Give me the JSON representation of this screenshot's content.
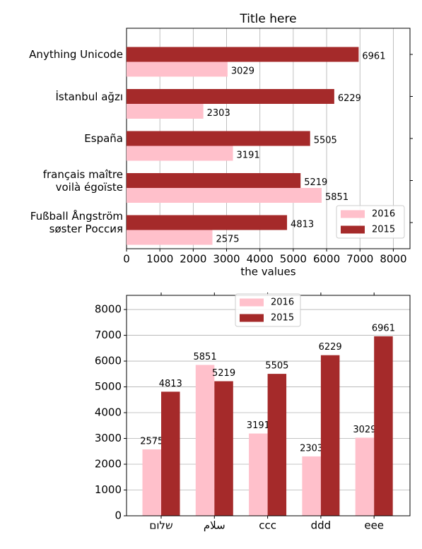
{
  "chart_data": [
    {
      "type": "hbar",
      "title": "Title here",
      "x_label": "the values",
      "categories": [
        "Fußball Ångström\nsøster Россия",
        "français maître\nvoilà égoïste",
        "España",
        "İstanbul ağzı",
        "Anything Unicode"
      ],
      "series": [
        {
          "name": "2016",
          "color": "#ffc0cb",
          "values": [
            2575,
            5851,
            3191,
            2303,
            3029
          ]
        },
        {
          "name": "2015",
          "color": "#a52a2a",
          "values": [
            4813,
            5219,
            5505,
            6229,
            6961
          ]
        }
      ],
      "xlim": [
        0,
        8500
      ],
      "xticks": [
        0,
        1000,
        2000,
        3000,
        4000,
        5000,
        6000,
        7000,
        8000
      ],
      "grid": true,
      "legend": "lower right"
    },
    {
      "type": "bar",
      "categories": [
        "שלום",
        "سلام",
        "ccc",
        "ddd",
        "eee"
      ],
      "series": [
        {
          "name": "2016",
          "color": "#ffc0cb",
          "values": [
            2575,
            5851,
            3191,
            2303,
            3029
          ]
        },
        {
          "name": "2015",
          "color": "#a52a2a",
          "values": [
            4813,
            5219,
            5505,
            6229,
            6961
          ]
        }
      ],
      "ylim": [
        0,
        8550
      ],
      "yticks": [
        0,
        1000,
        2000,
        3000,
        4000,
        5000,
        6000,
        7000,
        8000
      ],
      "grid": true,
      "legend": "upper center"
    }
  ]
}
